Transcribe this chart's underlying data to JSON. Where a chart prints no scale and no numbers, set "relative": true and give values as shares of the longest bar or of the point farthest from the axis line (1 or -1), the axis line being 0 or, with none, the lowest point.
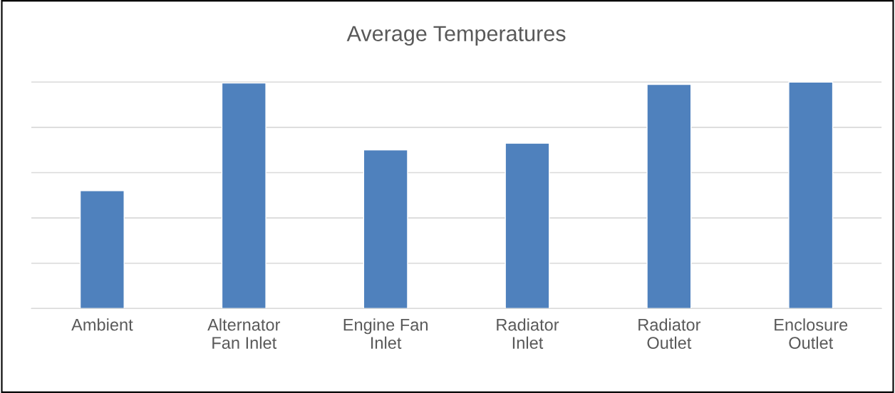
{
  "chart_data": {
    "type": "bar",
    "title": "Average Temperatures",
    "relative": true,
    "grid": "y",
    "legend": false,
    "categories": [
      "Ambient",
      "Alternator\nFan Inlet",
      "Engine Fan\nInlet",
      "Radiator\nInlet",
      "Radiator\nOutlet",
      "Enclosure\nOutlet"
    ],
    "series": [
      {
        "color": "#4f81bd",
        "values": [
          0.52,
          0.996,
          0.7,
          0.73,
          0.99,
          1.0
        ]
      }
    ]
  }
}
